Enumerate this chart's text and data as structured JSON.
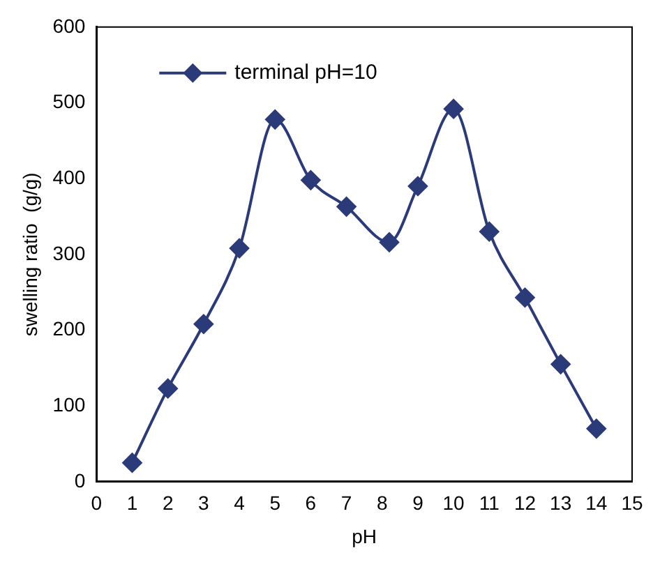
{
  "chart_data": {
    "type": "line",
    "xlabel": "pH",
    "ylabel": "swelling ratio  (g/g)",
    "series": [
      {
        "name": "terminal pH=10",
        "color": "#2b3a78",
        "x": [
          1,
          2,
          3,
          4,
          5,
          6,
          7,
          8.2,
          9,
          10,
          11,
          12,
          13,
          14
        ],
        "values": [
          25,
          123,
          208,
          308,
          478,
          398,
          363,
          316,
          390,
          492,
          330,
          243,
          155,
          70
        ]
      }
    ],
    "xlim": [
      0,
      15
    ],
    "xticks": [
      0,
      1,
      2,
      3,
      4,
      5,
      6,
      7,
      8,
      9,
      10,
      11,
      12,
      13,
      14,
      15
    ],
    "ylim": [
      0,
      600
    ],
    "yticks": [
      0,
      100,
      200,
      300,
      400,
      500,
      600
    ],
    "grid": false,
    "legend": "top left",
    "marker": "diamond",
    "line_style": "solid"
  }
}
